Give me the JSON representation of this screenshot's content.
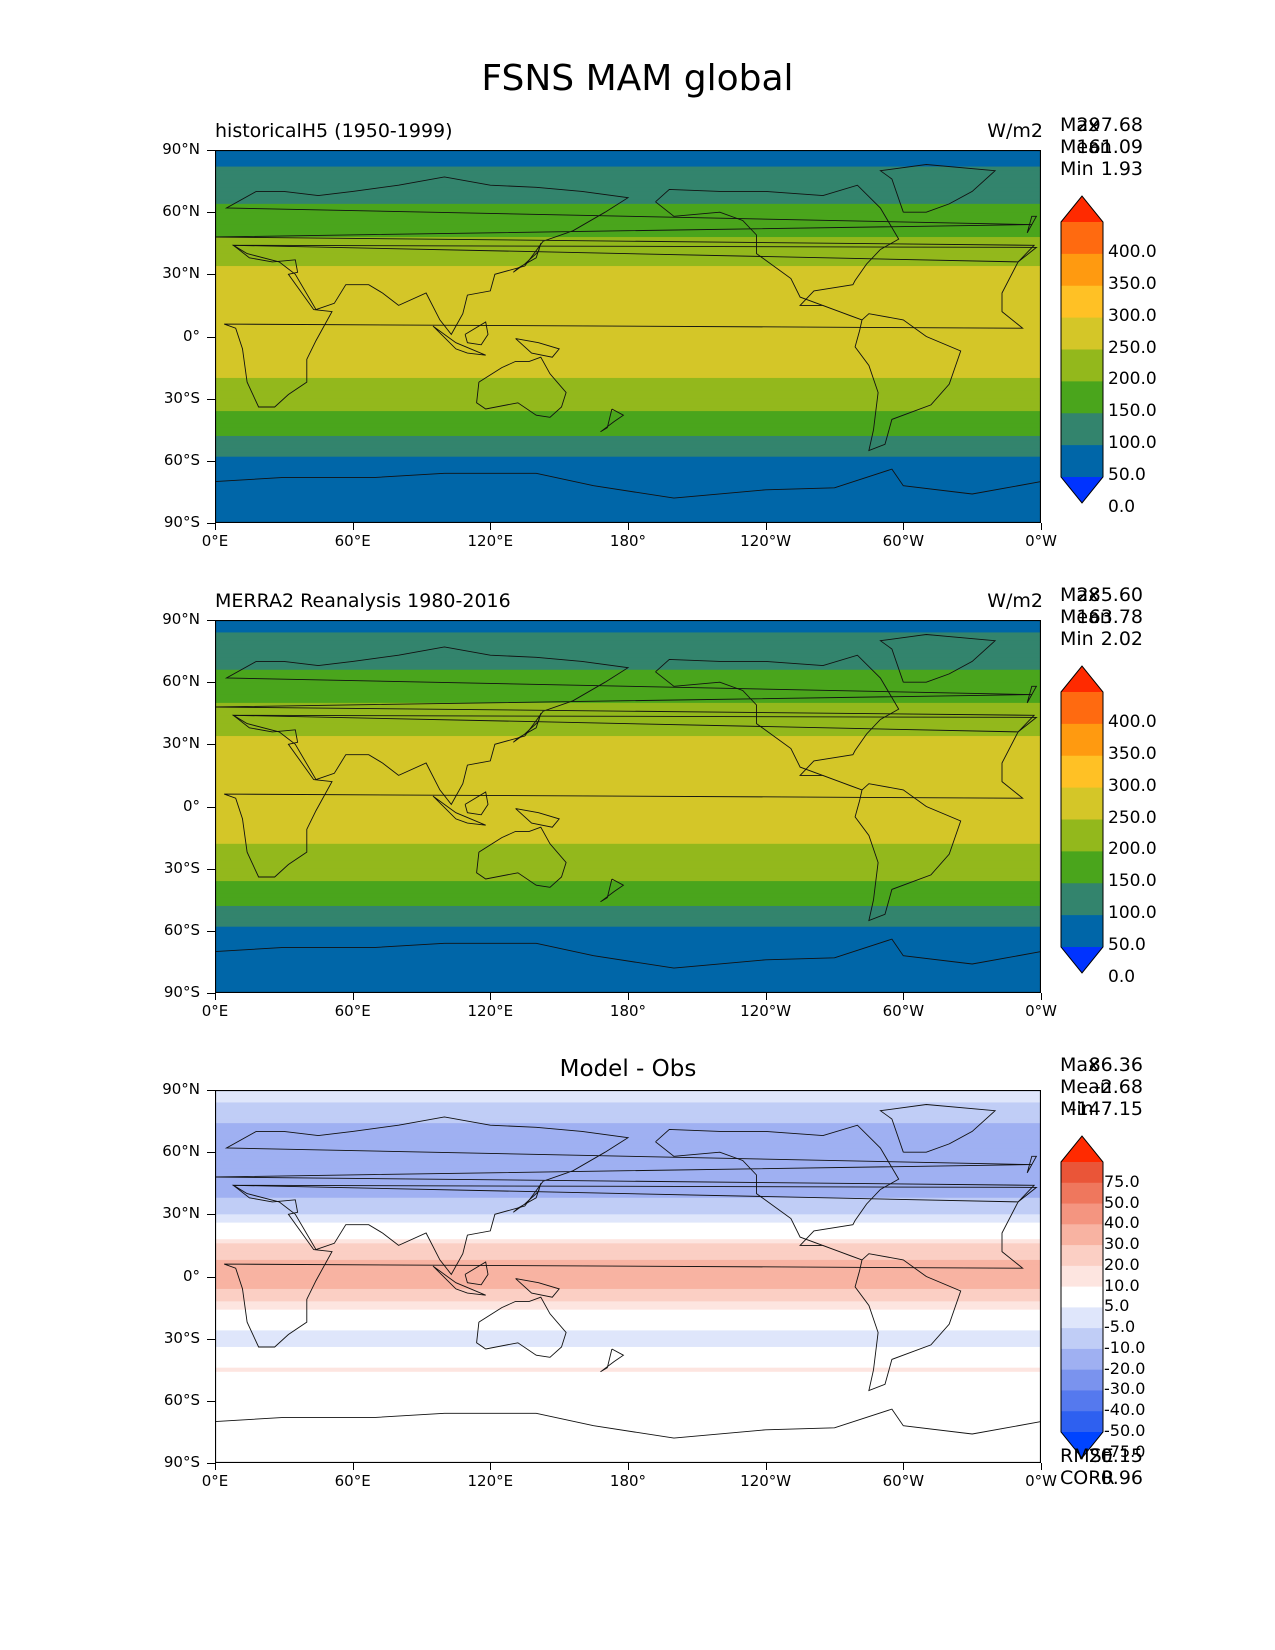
{
  "title": "FSNS MAM global",
  "lat_ticks": [
    "90°N",
    "60°N",
    "30°N",
    "0°",
    "30°S",
    "60°S",
    "90°S"
  ],
  "lon_ticks": [
    "0°E",
    "60°E",
    "120°E",
    "180°",
    "120°W",
    "60°W",
    "0°W"
  ],
  "colors": {
    "abs_levels": [
      "#0033ff",
      "#0066a8",
      "#33846d",
      "#4aa51c",
      "#93b81c",
      "#d4c628",
      "#ffc125",
      "#ff9a10",
      "#ff6a10",
      "#ff2a00"
    ],
    "diff_levels": [
      "#0044ff",
      "#2e60f0",
      "#5579ee",
      "#7a93ee",
      "#9fb0f2",
      "#c0cdf6",
      "#dfe6fb",
      "#ffffff",
      "#fde5e0",
      "#fbcfc4",
      "#f8b3a2",
      "#f49580",
      "#ef775d",
      "#ea5538",
      "#ff2a00"
    ]
  },
  "chart_data": [
    {
      "type": "heatmap",
      "left_title": "historicalH5 (1950-1999)",
      "right_title": "W/m2",
      "stats": {
        "max_label": "Max",
        "max": "297.68",
        "mean_label": "Mean",
        "mean": "161.09",
        "min_label": "Min",
        "min": "1.93"
      },
      "variable": "FSNS",
      "season": "MAM",
      "units": "W/m2",
      "xlim": [
        0,
        360
      ],
      "ylim": [
        -90,
        90
      ],
      "colorbar_levels": [
        "400.0",
        "350.0",
        "300.0",
        "250.0",
        "200.0",
        "150.0",
        "100.0",
        "50.0",
        "0.0"
      ],
      "zonal_profile": {
        "lat": [
          90,
          75,
          60,
          45,
          30,
          15,
          0,
          -15,
          -30,
          -45,
          -60,
          -75,
          -90
        ],
        "value": [
          30,
          70,
          110,
          160,
          215,
          240,
          215,
          215,
          170,
          120,
          40,
          10,
          2
        ]
      }
    },
    {
      "type": "heatmap",
      "left_title": "MERRA2 Reanalysis 1980-2016",
      "right_title": "W/m2",
      "stats": {
        "max_label": "Max",
        "max": "285.60",
        "mean_label": "Mean",
        "mean": "163.78",
        "min_label": "Min",
        "min": "2.02"
      },
      "variable": "FSNS",
      "season": "MAM",
      "units": "W/m2",
      "xlim": [
        0,
        360
      ],
      "ylim": [
        -90,
        90
      ],
      "colorbar_levels": [
        "400.0",
        "350.0",
        "300.0",
        "250.0",
        "200.0",
        "150.0",
        "100.0",
        "50.0",
        "0.0"
      ],
      "zonal_profile": {
        "lat": [
          90,
          75,
          60,
          45,
          30,
          15,
          0,
          -15,
          -30,
          -45,
          -60,
          -75,
          -90
        ],
        "value": [
          35,
          75,
          115,
          165,
          215,
          235,
          205,
          210,
          170,
          120,
          40,
          10,
          2
        ]
      }
    },
    {
      "type": "heatmap",
      "center_title": "Model - Obs",
      "stats": {
        "max_label": "Max",
        "max": "86.36",
        "mean_label": "Mean",
        "mean": "-2.68",
        "min_label": "Min",
        "min": "-147.15"
      },
      "metrics": {
        "rmse_label": "RMSE",
        "rmse": "20.15",
        "corr_label": "CORR",
        "corr": "0.96"
      },
      "xlim": [
        0,
        360
      ],
      "ylim": [
        -90,
        90
      ],
      "colorbar_levels": [
        "75.0",
        "50.0",
        "40.0",
        "30.0",
        "20.0",
        "10.0",
        "5.0",
        "-5.0",
        "-10.0",
        "-20.0",
        "-30.0",
        "-40.0",
        "-50.0",
        "-75.0"
      ],
      "zonal_profile": {
        "lat": [
          90,
          75,
          60,
          45,
          30,
          15,
          0,
          -15,
          -30,
          -45,
          -60,
          -75,
          -90
        ],
        "value": [
          -5,
          -20,
          -25,
          -30,
          -10,
          10,
          30,
          5,
          -10,
          5,
          2,
          0,
          0
        ]
      }
    }
  ]
}
